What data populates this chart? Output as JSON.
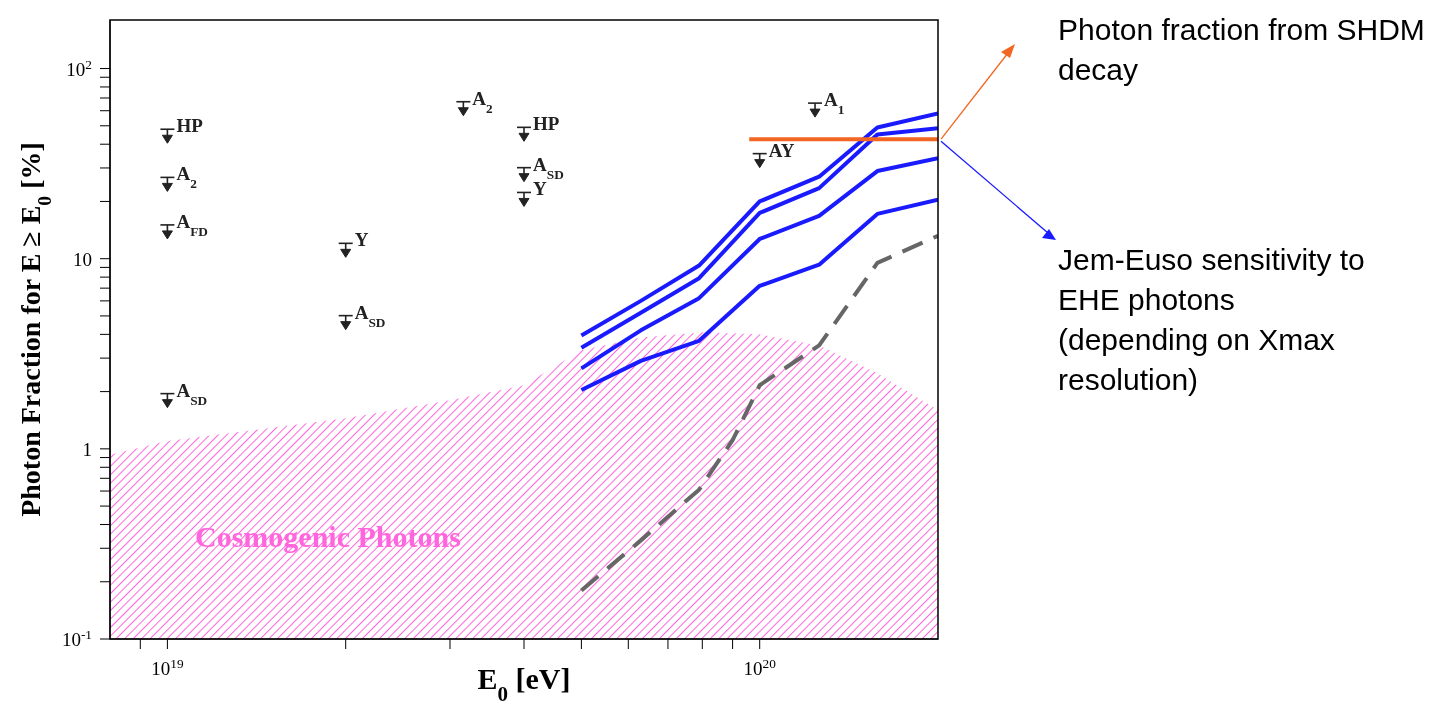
{
  "chart_data": {
    "type": "line",
    "xlabel": "E$_{0}$ [eV]",
    "ylabel": "Photon Fraction for E ≥ E$_{0}$ [%]",
    "log": "xy",
    "grid": false,
    "legend": false,
    "xlim": [
      8e+18,
      2e+20
    ],
    "ylim": [
      0.1,
      180
    ],
    "xticks": [
      {
        "value": 9e+18,
        "label": null
      },
      {
        "value": 1e+19,
        "label": "10$^{19}$"
      },
      {
        "value": 2e+19,
        "label": null
      },
      {
        "value": 3e+19,
        "label": null
      },
      {
        "value": 4e+19,
        "label": null
      },
      {
        "value": 5e+19,
        "label": null
      },
      {
        "value": 6e+19,
        "label": null
      },
      {
        "value": 7e+19,
        "label": null
      },
      {
        "value": 8e+19,
        "label": null
      },
      {
        "value": 9e+19,
        "label": null
      },
      {
        "value": 1e+20,
        "label": "10$^{20}$"
      }
    ],
    "yticks": [
      {
        "value": 0.1,
        "label": "10$^{-1}$"
      },
      {
        "value": 0.2,
        "label": null
      },
      {
        "value": 0.3,
        "label": null
      },
      {
        "value": 0.4,
        "label": null
      },
      {
        "value": 0.5,
        "label": null
      },
      {
        "value": 0.6,
        "label": null
      },
      {
        "value": 0.7,
        "label": null
      },
      {
        "value": 0.8,
        "label": null
      },
      {
        "value": 0.9,
        "label": null
      },
      1,
      {
        "value": 2,
        "label": null
      },
      {
        "value": 3,
        "label": null
      },
      {
        "value": 4,
        "label": null
      },
      {
        "value": 5,
        "label": null
      },
      {
        "value": 6,
        "label": null
      },
      {
        "value": 7,
        "label": null
      },
      {
        "value": 8,
        "label": null
      },
      {
        "value": 9,
        "label": null
      },
      10,
      {
        "value": 20,
        "label": null
      },
      {
        "value": 30,
        "label": null
      },
      {
        "value": 40,
        "label": null
      },
      {
        "value": 50,
        "label": null
      },
      {
        "value": 60,
        "label": null
      },
      {
        "value": 70,
        "label": null
      },
      {
        "value": 80,
        "label": null
      },
      {
        "value": 90,
        "label": null
      },
      {
        "value": 100,
        "label": "10$^{2}$"
      }
    ],
    "series": [
      {
        "type": "area",
        "color": "#ff66dd",
        "x": [
          8e+18,
          1e+19,
          2e+19,
          3e+19,
          4e+19,
          5e+19,
          6.3e+19,
          8e+19,
          1e+20,
          1.26e+20,
          1.58e+20,
          2e+20
        ],
        "values": [
          0.93,
          1.1,
          1.45,
          1.8,
          2.16,
          3.3,
          3.85,
          4.1,
          4.0,
          3.5,
          2.5,
          1.6
        ]
      },
      {
        "type": "line",
        "color": "#1a1aff",
        "x": [
          5e+19,
          6.3e+19,
          7.9e+19,
          1e+20,
          1.26e+20,
          1.58e+20,
          2e+20
        ],
        "values": [
          3.95,
          6.0,
          9.2,
          20,
          27,
          49,
          58
        ]
      },
      {
        "type": "line",
        "color": "#1a1aff",
        "x": [
          5e+19,
          6.3e+19,
          7.9e+19,
          1e+20,
          1.26e+20,
          1.58e+20,
          2e+20
        ],
        "values": [
          3.4,
          5.2,
          7.9,
          17.4,
          23.5,
          45,
          48.5
        ]
      },
      {
        "type": "line",
        "color": "#1a1aff",
        "x": [
          5e+19,
          6.3e+19,
          7.9e+19,
          1e+20,
          1.26e+20,
          1.58e+20,
          2e+20
        ],
        "values": [
          2.65,
          4.2,
          6.2,
          12.7,
          16.8,
          28.9,
          33.8
        ]
      },
      {
        "type": "line",
        "color": "#1a1aff",
        "x": [
          5e+19,
          6.3e+19,
          7.9e+19,
          1e+20,
          1.26e+20,
          1.58e+20,
          2e+20
        ],
        "values": [
          2.04,
          2.9,
          3.7,
          7.2,
          9.3,
          17.2,
          20.4
        ]
      },
      {
        "type": "line",
        "color": "#666666",
        "line_style": "dashed",
        "x": [
          5e+19,
          6.3e+19,
          7.9e+19,
          9e+19,
          1e+20,
          1.26e+20,
          1.58e+20,
          2e+20
        ],
        "values": [
          0.18,
          0.33,
          0.61,
          1.11,
          2.16,
          3.5,
          9.5,
          13.2
        ]
      },
      {
        "type": "line",
        "color": "#f26522",
        "x": [
          9.6e+19,
          2e+20
        ],
        "values": [
          42.5,
          42.5
        ]
      },
      {
        "type": "scatter",
        "color": "#222222",
        "marker": "triangle",
        "x": [
          1e+19,
          1e+19,
          1e+19,
          1e+19,
          2e+19,
          2e+19,
          3.16e+19,
          4e+19,
          4e+19,
          4e+19,
          1e+20,
          1.24e+20
        ],
        "values": [
          43,
          24,
          13.5,
          1.75,
          10.8,
          4.5,
          60,
          44,
          27,
          20,
          32,
          59
        ]
      }
    ],
    "annotations": [
      {
        "text": "HP",
        "x": 1e+19,
        "y": 43
      },
      {
        "text": "A$_{2}$",
        "x": 1e+19,
        "y": 24
      },
      {
        "text": "A$_{FD}$",
        "x": 1e+19,
        "y": 13.5
      },
      {
        "text": "A$_{SD}$",
        "x": 1e+19,
        "y": 1.75
      },
      {
        "text": "Y",
        "x": 2e+19,
        "y": 10.8
      },
      {
        "text": "A$_{SD}$",
        "x": 2e+19,
        "y": 4.5
      },
      {
        "text": "A$_{2}$",
        "x": 3.16e+19,
        "y": 60
      },
      {
        "text": "HP",
        "x": 4e+19,
        "y": 44
      },
      {
        "text": "A$_{SD}$",
        "x": 4e+19,
        "y": 27
      },
      {
        "text": "Y",
        "x": 4e+19,
        "y": 20
      },
      {
        "text": "AY",
        "x": 1e+20,
        "y": 32
      },
      {
        "text": "A$_{1}$",
        "x": 1.24e+20,
        "y": 59
      },
      "Cosmogenic Photons",
      "Photon fraction from SHDM decay",
      "Jem-Euso sensitivity to\nEHE photons\n(depending on Xmax\nresolution)"
    ]
  }
}
